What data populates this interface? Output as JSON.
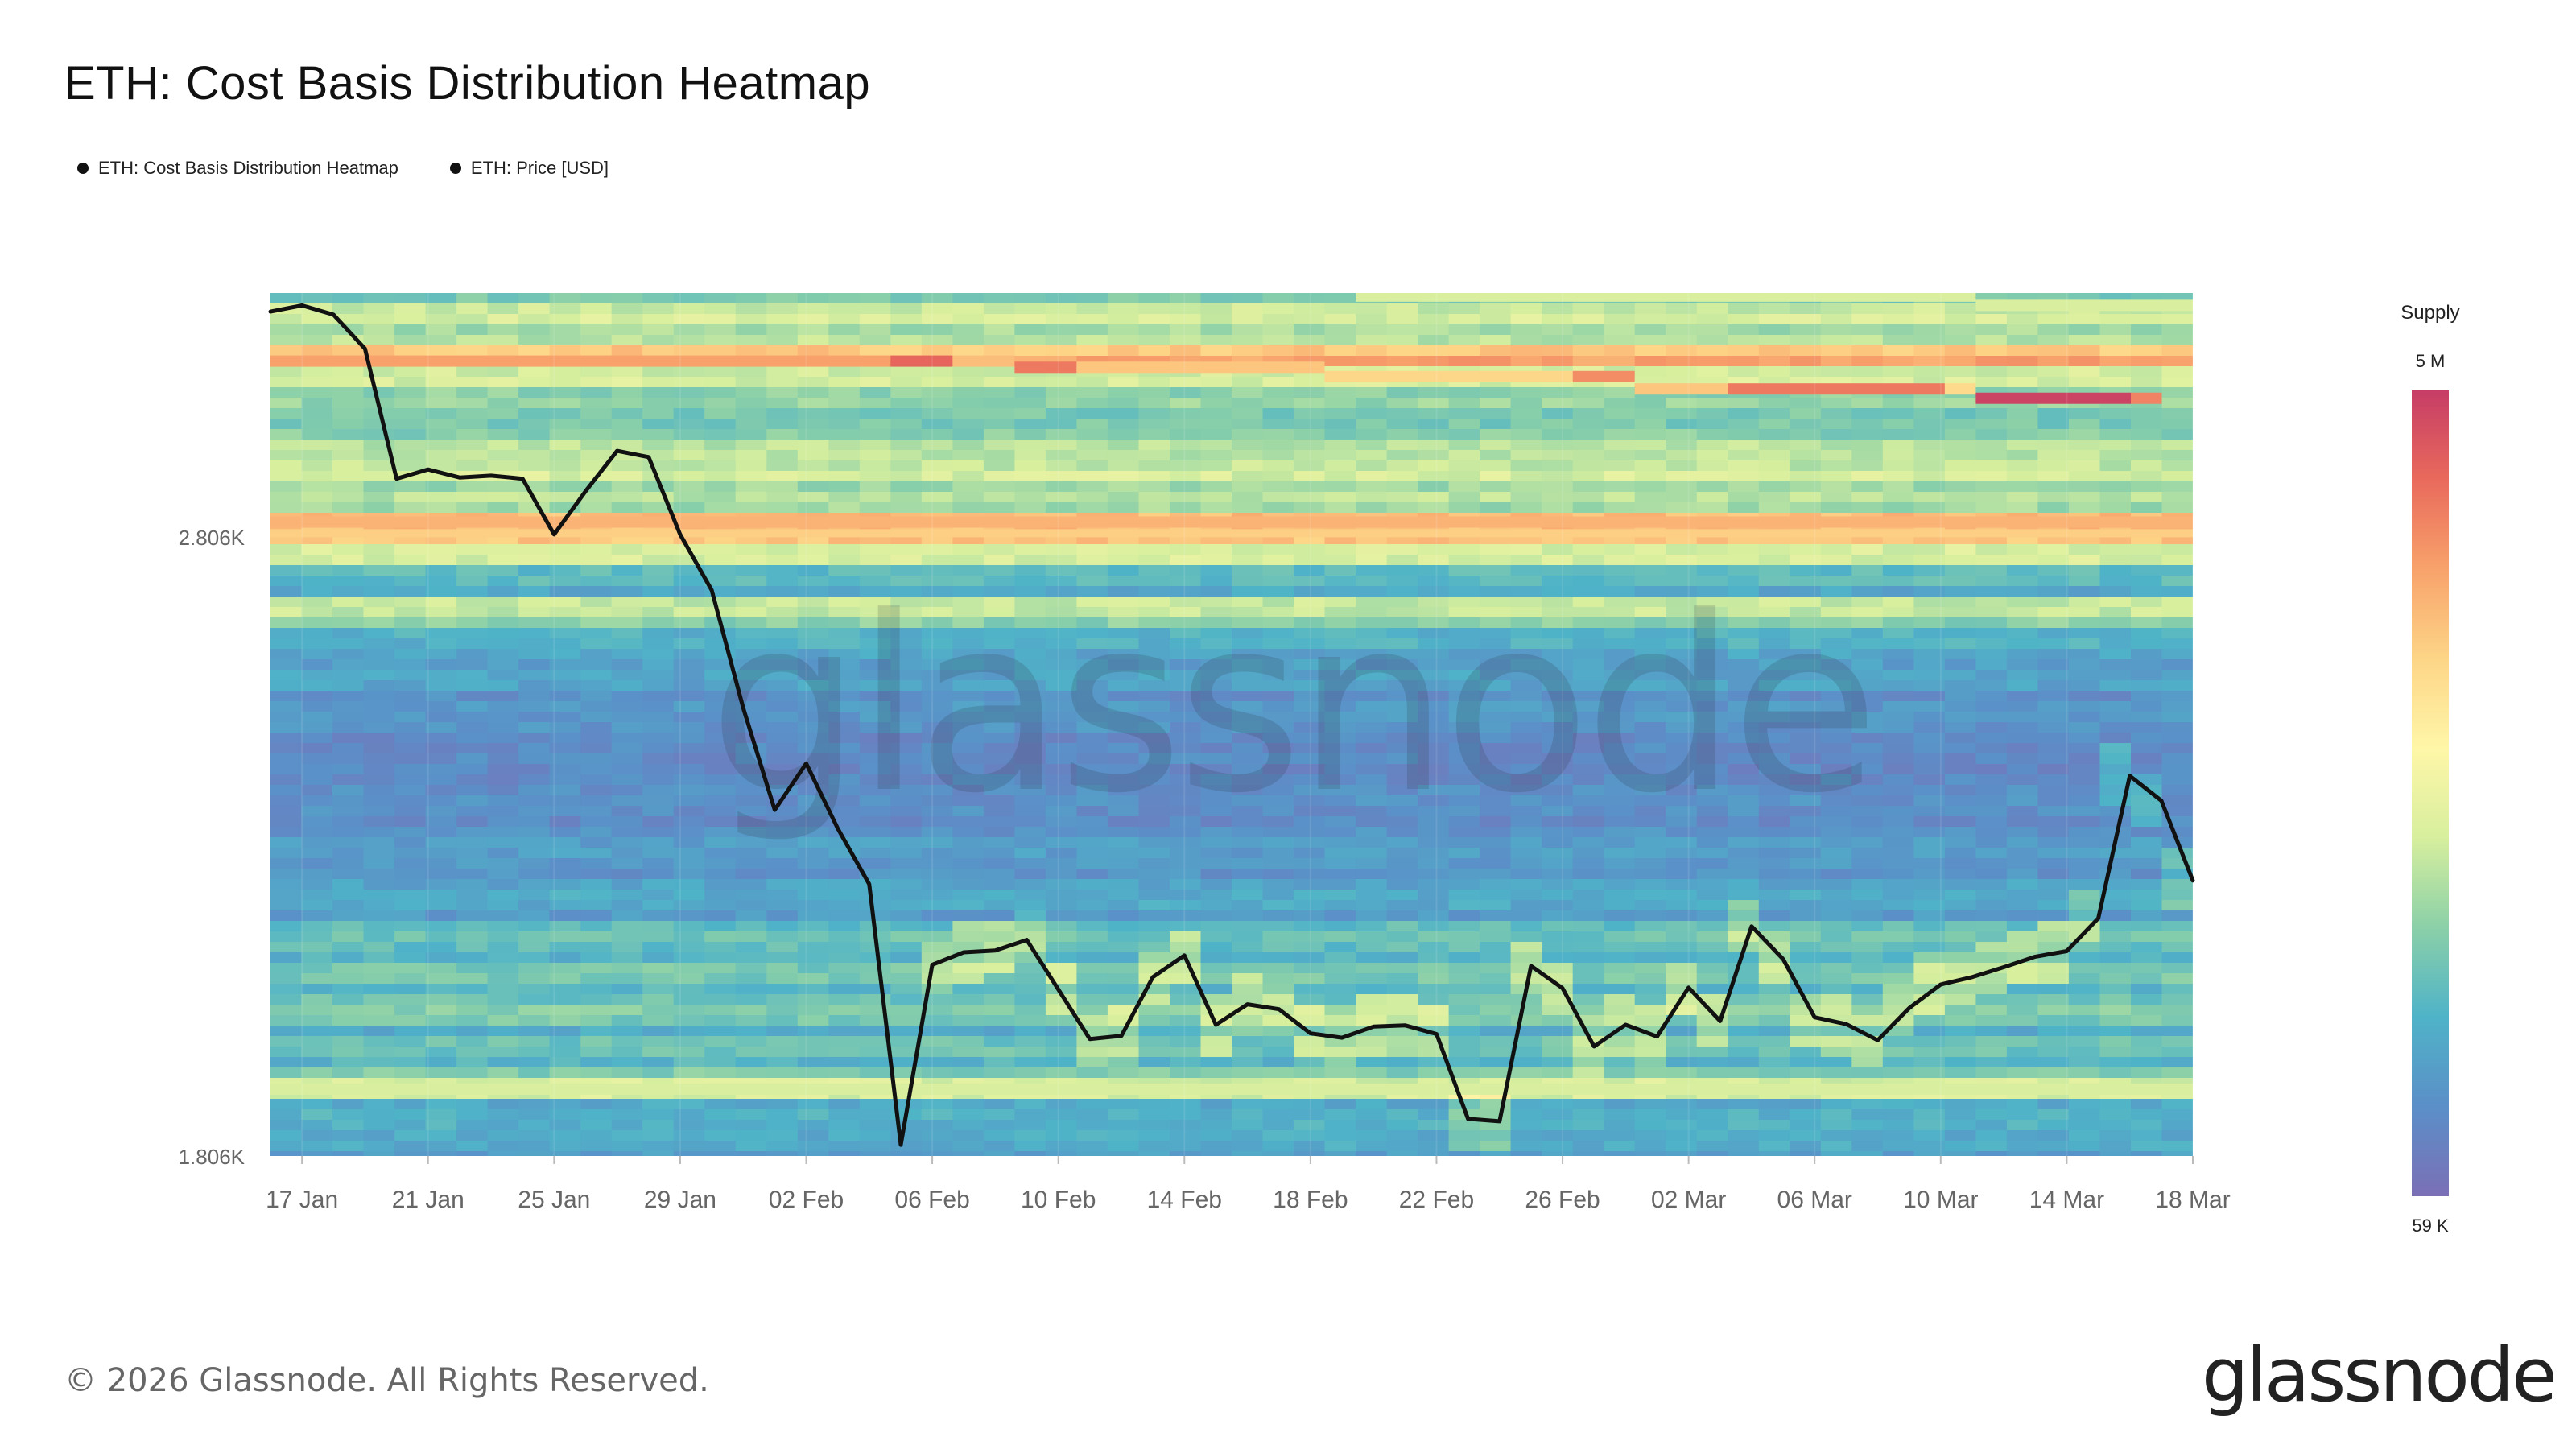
{
  "chart_data": {
    "type": "heatmap",
    "title": "ETH: Cost Basis Distribution Heatmap",
    "legend": [
      "ETH: Cost Basis Distribution Heatmap",
      "ETH: Price [USD]"
    ],
    "legend_placement": "top-left",
    "colorbar": {
      "title": "Supply",
      "max_label": "5 M",
      "min_label": "59 K",
      "colors": [
        "#7b6fb6",
        "#5b8fc8",
        "#4fb3c8",
        "#8bd0a8",
        "#d7ef9e",
        "#fff6a8",
        "#fdd587",
        "#f8a26b",
        "#e96a5c",
        "#c63c66"
      ]
    },
    "y_ticks": [
      "2.806K",
      "1.806K"
    ],
    "y_range": [
      1806,
      3200
    ],
    "x_ticks": [
      "17 Jan",
      "21 Jan",
      "25 Jan",
      "29 Jan",
      "02 Feb",
      "06 Feb",
      "10 Feb",
      "14 Feb",
      "18 Feb",
      "22 Feb",
      "26 Feb",
      "02 Mar",
      "06 Mar",
      "10 Mar",
      "14 Mar",
      "18 Mar"
    ],
    "price_series": {
      "name": "ETH: Price [USD]",
      "x": [
        "16 Jan",
        "17 Jan",
        "18 Jan",
        "19 Jan",
        "20 Jan",
        "21 Jan",
        "22 Jan",
        "23 Jan",
        "24 Jan",
        "25 Jan",
        "26 Jan",
        "27 Jan",
        "28 Jan",
        "29 Jan",
        "30 Jan",
        "31 Jan",
        "01 Feb",
        "02 Feb",
        "03 Feb",
        "04 Feb",
        "05 Feb",
        "06 Feb",
        "07 Feb",
        "08 Feb",
        "09 Feb",
        "10 Feb",
        "11 Feb",
        "12 Feb",
        "13 Feb",
        "14 Feb",
        "15 Feb",
        "16 Feb",
        "17 Feb",
        "18 Feb",
        "19 Feb",
        "20 Feb",
        "21 Feb",
        "22 Feb",
        "23 Feb",
        "24 Feb",
        "25 Feb",
        "26 Feb",
        "27 Feb",
        "28 Feb",
        "01 Mar",
        "02 Mar",
        "03 Mar",
        "04 Mar",
        "05 Mar",
        "06 Mar",
        "07 Mar",
        "08 Mar",
        "09 Mar",
        "10 Mar",
        "11 Mar",
        "12 Mar",
        "13 Mar",
        "14 Mar",
        "15 Mar",
        "16 Mar",
        "17 Mar",
        "18 Mar"
      ],
      "values": [
        3170,
        3180,
        3165,
        3110,
        2900,
        2915,
        2902,
        2905,
        2900,
        2810,
        2880,
        2945,
        2935,
        2810,
        2720,
        2530,
        2365,
        2440,
        2335,
        2245,
        1824,
        2115,
        2135,
        2138,
        2155,
        2075,
        1995,
        2000,
        2095,
        2130,
        2018,
        2051,
        2043,
        2004,
        1997,
        2015,
        2017,
        2003,
        1866,
        1862,
        2113,
        2077,
        1983,
        2018,
        1999,
        2078,
        2024,
        2177,
        2124,
        2030,
        2019,
        1993,
        2045,
        2083,
        2095,
        2111,
        2128,
        2137,
        2190,
        2420,
        2380,
        2251
      ]
    },
    "heatmap_bands": [
      {
        "price": 3195,
        "level": 0.3
      },
      {
        "price": 3160,
        "level": 0.45
      },
      {
        "price": 3125,
        "level": 0.4
      },
      {
        "price": 3090,
        "level": 0.78
      },
      {
        "price": 3060,
        "level": 0.45
      },
      {
        "price": 3025,
        "level": 0.35
      },
      {
        "price": 2995,
        "level": 0.3
      },
      {
        "price": 2950,
        "level": 0.4
      },
      {
        "price": 2905,
        "level": 0.45
      },
      {
        "price": 2870,
        "level": 0.4
      },
      {
        "price": 2830,
        "level": 0.72
      },
      {
        "price": 2808,
        "level": 0.7
      },
      {
        "price": 2780,
        "level": 0.45
      },
      {
        "price": 2745,
        "level": 0.25
      },
      {
        "price": 2690,
        "level": 0.42
      },
      {
        "price": 2640,
        "level": 0.22
      },
      {
        "price": 2580,
        "level": 0.18
      },
      {
        "price": 2520,
        "level": 0.14
      },
      {
        "price": 2460,
        "level": 0.1
      },
      {
        "price": 2380,
        "level": 0.12
      },
      {
        "price": 2300,
        "level": 0.16
      },
      {
        "price": 2225,
        "level": 0.2
      },
      {
        "price": 2160,
        "level": 0.28
      },
      {
        "price": 2100,
        "level": 0.3
      },
      {
        "price": 2040,
        "level": 0.32
      },
      {
        "price": 1980,
        "level": 0.28
      },
      {
        "price": 1914,
        "level": 0.45
      },
      {
        "price": 1870,
        "level": 0.22
      },
      {
        "price": 1830,
        "level": 0.2
      }
    ]
  },
  "watermark": "glassnode",
  "footer": {
    "copyright": "© 2026 Glassnode. All Rights Reserved.",
    "logo": "glassnode"
  }
}
